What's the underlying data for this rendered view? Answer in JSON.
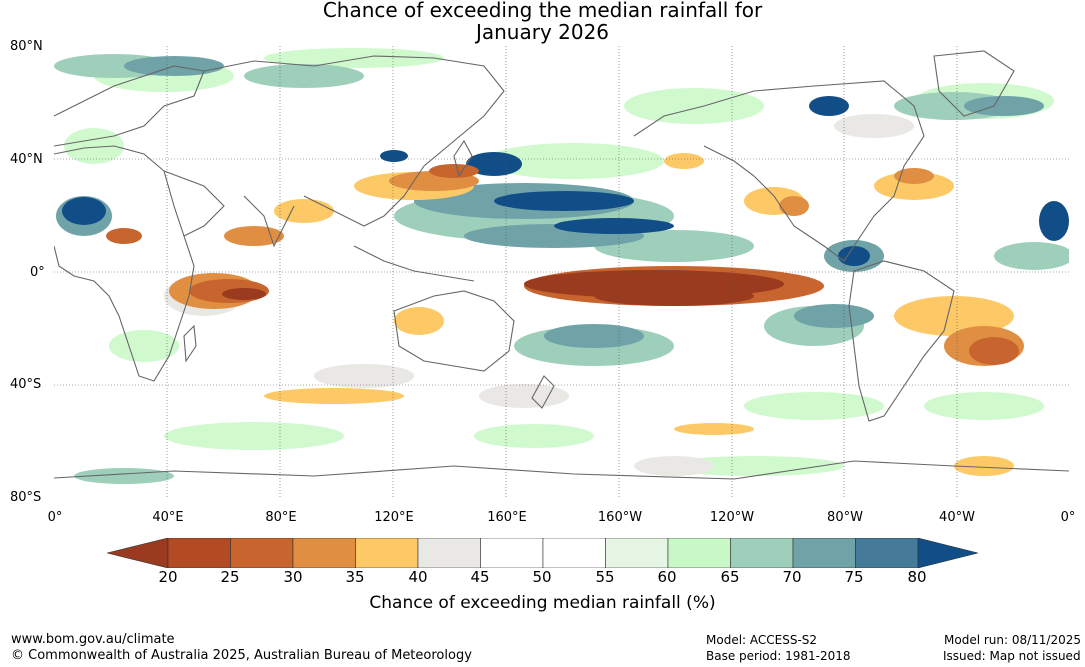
{
  "title": {
    "line1": "Chance of exceeding the median rainfall for",
    "line2": "January 2026"
  },
  "axes": {
    "lat_labels": [
      "80°N",
      "40°N",
      "0°",
      "40°S",
      "80°S"
    ],
    "lon_labels": [
      "0°",
      "40°E",
      "80°E",
      "120°E",
      "160°E",
      "160°W",
      "120°W",
      "80°W",
      "40°W",
      "0°"
    ]
  },
  "colorbar": {
    "ticks": [
      "20",
      "25",
      "30",
      "35",
      "40",
      "45",
      "50",
      "55",
      "60",
      "65",
      "70",
      "75",
      "80"
    ],
    "colors": [
      "#9a3a1e",
      "#b24a24",
      "#c8642e",
      "#e08f42",
      "#fcc966",
      "#e9e8e4",
      "#ffffff",
      "#ffffff",
      "#e7f5e5",
      "#c8f8c6",
      "#9dcfba",
      "#6fa3a8",
      "#457a98",
      "#114d87"
    ],
    "label": "Chance of exceeding median rainfall (%)"
  },
  "footer": {
    "website": "www.bom.gov.au/climate",
    "copyright": "© Commonwealth of Australia 2025, Australian Bureau of Meteorology",
    "model": "Model: ACCESS-S2",
    "base_period": "Base period: 1981-2018",
    "model_run": "Model run: 08/11/2025",
    "issued": "Issued: Map not issued"
  },
  "map": {
    "legend_classes": {
      "dry_strong": "#9a3a1e",
      "dry": "#c8642e",
      "dry_light": "#e08f42",
      "dry_faint": "#fcc966",
      "neutral": "#e9e8e4",
      "wet_faint": "#c8f8c6",
      "wet_light": "#9dcfba",
      "wet": "#6fa3a8",
      "wet_strong": "#114d87"
    }
  }
}
